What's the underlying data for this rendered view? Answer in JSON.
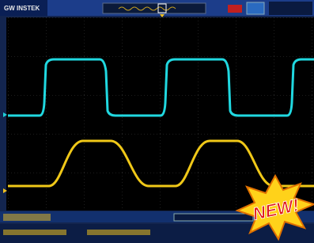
{
  "header": {
    "brand": "GW INSTEK"
  },
  "badge": {
    "text": "NEW!"
  }
}
